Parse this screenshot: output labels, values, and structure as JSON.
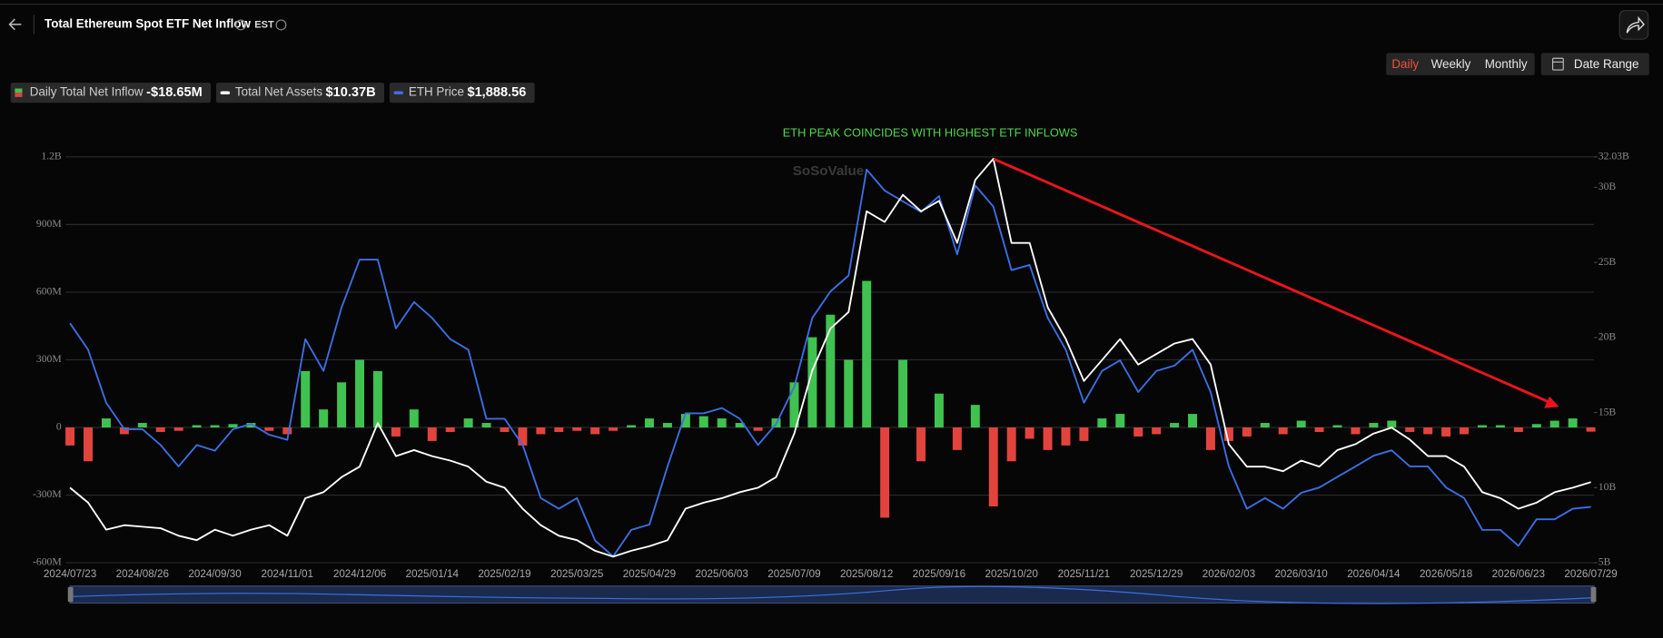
{
  "header": {
    "title": "Total Ethereum Spot ETF Net Inflow",
    "timezone": "EST"
  },
  "controls": {
    "periods": [
      "Daily",
      "Weekly",
      "Monthly"
    ],
    "active_period": "Daily",
    "date_range": "Date Range"
  },
  "chart_data": {
    "type": "bar",
    "annotation": "ETH PEAK COINCIDES WITH HIGHEST ETF INFLOWS",
    "watermark": "SoSoValue",
    "categories": [
      "2024/07/23",
      null,
      null,
      null,
      "2024/08/26",
      null,
      null,
      null,
      "2024/09/30",
      null,
      null,
      null,
      "2024/11/01",
      null,
      null,
      null,
      "2024/12/06",
      null,
      null,
      null,
      "2025/01/14",
      null,
      null,
      null,
      "2025/02/19",
      null,
      null,
      null,
      "2025/03/25",
      null,
      null,
      null,
      "2025/04/29",
      null,
      null,
      null,
      "2025/06/03",
      null,
      null,
      null,
      "2025/07/09",
      null,
      null,
      null,
      "2025/08/12",
      null,
      null,
      null,
      "2025/09/16",
      null,
      null,
      null,
      "2025/10/20",
      null,
      null,
      null,
      "2025/11/21",
      null,
      null,
      null,
      "2025/12/29",
      null,
      null,
      null,
      "2026/02/03",
      null,
      null,
      null,
      "2026/03/10",
      null,
      null,
      null,
      "2026/04/14",
      null,
      null,
      null,
      "2026/05/18",
      null,
      null,
      null,
      "2026/06/23",
      null,
      null,
      null,
      "2026/07/29"
    ],
    "ylim": [
      -600,
      1200
    ],
    "yticks": [
      {
        "value": -600,
        "label": "-600M"
      },
      {
        "value": -300,
        "label": "-300M"
      },
      0,
      {
        "value": 300,
        "label": "300M"
      },
      {
        "value": 600,
        "label": "600M"
      },
      {
        "value": 900,
        "label": "900M"
      },
      {
        "value": 1200,
        "label": "1.2B"
      }
    ],
    "y2lim": [
      5,
      32.03
    ],
    "y2ticks": [
      {
        "value": 5,
        "label": "5B"
      },
      {
        "value": 10,
        "label": "10B"
      },
      {
        "value": 15,
        "label": "15B"
      },
      {
        "value": 20,
        "label": "20B"
      },
      {
        "value": 25,
        "label": "25B"
      },
      {
        "value": 30,
        "label": "30B"
      },
      {
        "value": 32.03,
        "label": "32.03B"
      }
    ],
    "y3lim": [
      1400,
      4950
    ],
    "grid": true,
    "series": [
      {
        "name": "Daily Total Net Inflow",
        "type": "bar",
        "color_positive": "#3fc24f",
        "color_negative": "#e2443d",
        "latest_label": "-$18.65M",
        "values": [
          -80,
          -150,
          40,
          -30,
          20,
          -20,
          -15,
          10,
          10,
          15,
          20,
          -15,
          -30,
          250,
          80,
          200,
          300,
          250,
          -40,
          80,
          -60,
          -20,
          40,
          20,
          -20,
          -80,
          -30,
          -20,
          -15,
          -30,
          -15,
          10,
          40,
          20,
          60,
          50,
          40,
          20,
          -15,
          40,
          200,
          400,
          500,
          300,
          650,
          -400,
          300,
          -150,
          150,
          -100,
          100,
          -350,
          -150,
          -50,
          -100,
          -80,
          -60,
          40,
          60,
          -40,
          -30,
          20,
          60,
          -100,
          -60,
          -40,
          20,
          -30,
          30,
          -20,
          10,
          -30,
          20,
          30,
          -20,
          -30,
          -40,
          -30,
          10,
          10,
          -20,
          15,
          30,
          40,
          -18.65
        ]
      },
      {
        "name": "Total Net Assets",
        "type": "line",
        "axis": "y2",
        "color": "#ffffff",
        "latest_label": "$10.37B",
        "values": [
          10.0,
          9.0,
          7.2,
          7.5,
          7.4,
          7.3,
          6.8,
          6.5,
          7.2,
          6.8,
          7.2,
          7.5,
          6.8,
          9.3,
          9.7,
          10.7,
          11.4,
          14.3,
          12.1,
          12.5,
          12.1,
          11.8,
          11.4,
          10.4,
          10.0,
          8.6,
          7.5,
          6.8,
          6.5,
          5.8,
          5.4,
          5.8,
          6.1,
          6.5,
          8.6,
          9.0,
          9.3,
          9.7,
          10.0,
          10.7,
          13.6,
          17.8,
          20.6,
          21.7,
          28.4,
          27.7,
          29.5,
          28.4,
          29.1,
          26.3,
          30.5,
          31.9,
          26.3,
          26.3,
          22.0,
          19.9,
          17.1,
          18.5,
          19.9,
          18.2,
          18.9,
          19.6,
          19.9,
          18.2,
          12.9,
          11.4,
          11.4,
          11.1,
          11.8,
          11.4,
          12.5,
          12.9,
          13.6,
          14.0,
          13.2,
          12.1,
          12.1,
          11.4,
          9.7,
          9.3,
          8.6,
          9.0,
          9.7,
          10.0,
          10.37
        ]
      },
      {
        "name": "ETH Price",
        "type": "line",
        "axis": "y3",
        "color": "#3b6fe3",
        "latest_label": "$1,888.56",
        "values": [
          3495,
          3263,
          2800,
          2568,
          2568,
          2430,
          2243,
          2430,
          2380,
          2568,
          2614,
          2520,
          2475,
          3356,
          3078,
          3634,
          4051,
          4051,
          3449,
          3680,
          3541,
          3356,
          3263,
          2660,
          2660,
          2430,
          1965,
          1873,
          1965,
          1595,
          1456,
          1687,
          1734,
          2243,
          2707,
          2707,
          2753,
          2660,
          2430,
          2614,
          2939,
          3541,
          3773,
          3912,
          4839,
          4654,
          4561,
          4468,
          4607,
          4098,
          4700,
          4515,
          3959,
          4005,
          3541,
          3263,
          2800,
          3078,
          3170,
          2893,
          3078,
          3124,
          3263,
          2893,
          2243,
          1873,
          1965,
          1873,
          2012,
          2058,
          2151,
          2243,
          2336,
          2383,
          2243,
          2243,
          2058,
          1965,
          1687,
          1687,
          1548,
          1780,
          1780,
          1873,
          1888.56
        ]
      }
    ]
  }
}
